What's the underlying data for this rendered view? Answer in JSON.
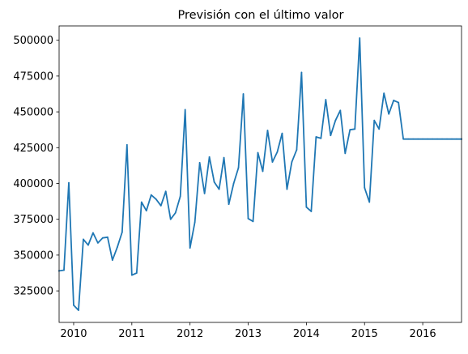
{
  "chart_data": {
    "type": "line",
    "title": "Previsión con el último valor",
    "xlabel": "",
    "ylabel": "",
    "x_range": [
      "2009-10",
      "2016-09"
    ],
    "ylim": [
      303000,
      510000
    ],
    "grid": false,
    "legend": "none",
    "x_ticks": [
      {
        "label": "2010",
        "date": "2010-01"
      },
      {
        "label": "2011",
        "date": "2011-01"
      },
      {
        "label": "2012",
        "date": "2012-01"
      },
      {
        "label": "2013",
        "date": "2013-01"
      },
      {
        "label": "2014",
        "date": "2014-01"
      },
      {
        "label": "2015",
        "date": "2015-01"
      },
      {
        "label": "2016",
        "date": "2016-01"
      }
    ],
    "y_ticks": [
      {
        "label": "325000",
        "value": 325000
      },
      {
        "label": "350000",
        "value": 350000
      },
      {
        "label": "375000",
        "value": 375000
      },
      {
        "label": "400000",
        "value": 400000
      },
      {
        "label": "425000",
        "value": 425000
      },
      {
        "label": "450000",
        "value": 450000
      },
      {
        "label": "475000",
        "value": 475000
      },
      {
        "label": "500000",
        "value": 500000
      }
    ],
    "series": [
      {
        "color": "#1f77b4",
        "x": [
          "2009-10",
          "2009-11",
          "2009-12",
          "2010-01",
          "2010-02",
          "2010-03",
          "2010-04",
          "2010-05",
          "2010-06",
          "2010-07",
          "2010-08",
          "2010-09",
          "2010-10",
          "2010-11",
          "2010-12",
          "2011-01",
          "2011-02",
          "2011-03",
          "2011-04",
          "2011-05",
          "2011-06",
          "2011-07",
          "2011-08",
          "2011-09",
          "2011-10",
          "2011-11",
          "2011-12",
          "2012-01",
          "2012-02",
          "2012-03",
          "2012-04",
          "2012-05",
          "2012-06",
          "2012-07",
          "2012-08",
          "2012-09",
          "2012-10",
          "2012-11",
          "2012-12",
          "2013-01",
          "2013-02",
          "2013-03",
          "2013-04",
          "2013-05",
          "2013-06",
          "2013-07",
          "2013-08",
          "2013-09",
          "2013-10",
          "2013-11",
          "2013-12",
          "2014-01",
          "2014-02",
          "2014-03",
          "2014-04",
          "2014-05",
          "2014-06",
          "2014-07",
          "2014-08",
          "2014-09",
          "2014-10",
          "2014-11",
          "2014-12",
          "2015-01",
          "2015-02",
          "2015-03",
          "2015-04",
          "2015-05",
          "2015-06",
          "2015-07",
          "2015-08",
          "2015-09",
          "2015-10",
          "2015-11",
          "2015-12",
          "2016-01",
          "2016-02",
          "2016-03",
          "2016-04",
          "2016-05",
          "2016-06",
          "2016-07",
          "2016-08",
          "2016-09"
        ],
        "values": [
          339000,
          339500,
          400500,
          315000,
          311500,
          361000,
          357000,
          365500,
          358500,
          362000,
          362500,
          346500,
          355500,
          366000,
          427000,
          336000,
          337500,
          387000,
          381000,
          392000,
          389000,
          384500,
          394500,
          375000,
          379500,
          391000,
          451500,
          355000,
          373000,
          414500,
          393000,
          418500,
          401000,
          396000,
          418000,
          385500,
          400000,
          411000,
          462500,
          375500,
          373500,
          421500,
          408500,
          437000,
          415000,
          422000,
          435000,
          396000,
          415000,
          423500,
          477500,
          383500,
          380500,
          432500,
          431500,
          458500,
          433500,
          444000,
          451000,
          421000,
          437500,
          438000,
          501500,
          397000,
          387000,
          444000,
          438000,
          463000,
          448500,
          458000,
          456500,
          431000,
          431000,
          431000,
          431000,
          431000,
          431000,
          431000,
          431000,
          431000,
          431000,
          431000,
          431000,
          431000
        ]
      }
    ]
  }
}
